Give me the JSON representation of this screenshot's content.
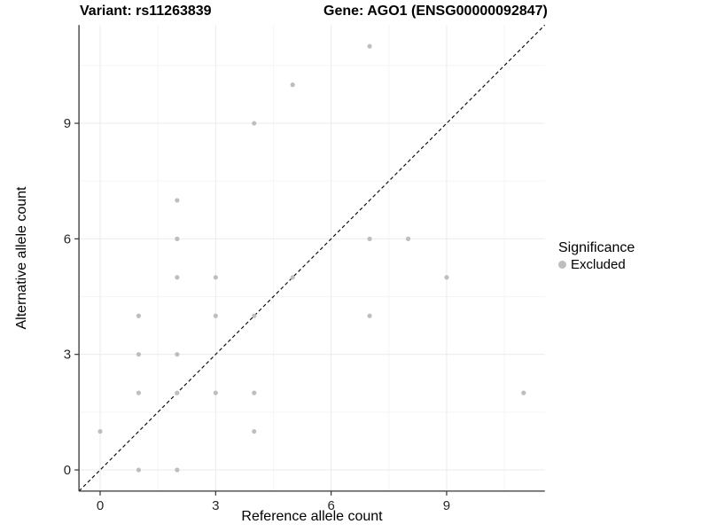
{
  "header": {
    "title_left": "Variant: rs11263839",
    "title_right": "Gene: AGO1 (ENSG00000092847)"
  },
  "legend": {
    "title": "Significance",
    "entries": [
      {
        "label": "Excluded",
        "color": "#bebebe"
      }
    ]
  },
  "chart_data": {
    "type": "scatter",
    "title": "Variant: rs11263839    Gene: AGO1 (ENSG00000092847)",
    "xlabel": "Reference allele count",
    "ylabel": "Alternative allele count",
    "x_ticks": [
      0,
      3,
      6,
      9
    ],
    "y_ticks": [
      0,
      3,
      6,
      9
    ],
    "x_minor": [
      1.5,
      4.5,
      7.5,
      10.5
    ],
    "y_minor": [
      1.5,
      4.5,
      7.5,
      10.5
    ],
    "xlim": [
      -0.55,
      11.55
    ],
    "ylim": [
      -0.55,
      11.55
    ],
    "grid": true,
    "legend_position": "right",
    "reference_line": {
      "type": "identity",
      "equation": "y = x",
      "style": "dashed",
      "color": "#111111"
    },
    "series": [
      {
        "name": "Excluded",
        "color": "#bebebe",
        "points": [
          [
            0,
            1
          ],
          [
            1,
            0
          ],
          [
            1,
            2
          ],
          [
            1,
            3
          ],
          [
            1,
            4
          ],
          [
            2,
            0
          ],
          [
            2,
            2
          ],
          [
            2,
            3
          ],
          [
            2,
            5
          ],
          [
            2,
            6
          ],
          [
            2,
            7
          ],
          [
            3,
            2
          ],
          [
            3,
            4
          ],
          [
            3,
            5
          ],
          [
            4,
            1
          ],
          [
            4,
            2
          ],
          [
            4,
            4
          ],
          [
            4,
            9
          ],
          [
            5,
            5
          ],
          [
            5,
            10
          ],
          [
            7,
            4
          ],
          [
            7,
            6
          ],
          [
            7,
            11
          ],
          [
            8,
            6
          ],
          [
            9,
            5
          ],
          [
            11,
            2
          ]
        ]
      }
    ],
    "colors": {
      "point": "#bebebe",
      "grid_major": "#ebebeb",
      "grid_minor": "#f5f5f5",
      "axis": "#333333",
      "tick_text": "#262626"
    }
  }
}
